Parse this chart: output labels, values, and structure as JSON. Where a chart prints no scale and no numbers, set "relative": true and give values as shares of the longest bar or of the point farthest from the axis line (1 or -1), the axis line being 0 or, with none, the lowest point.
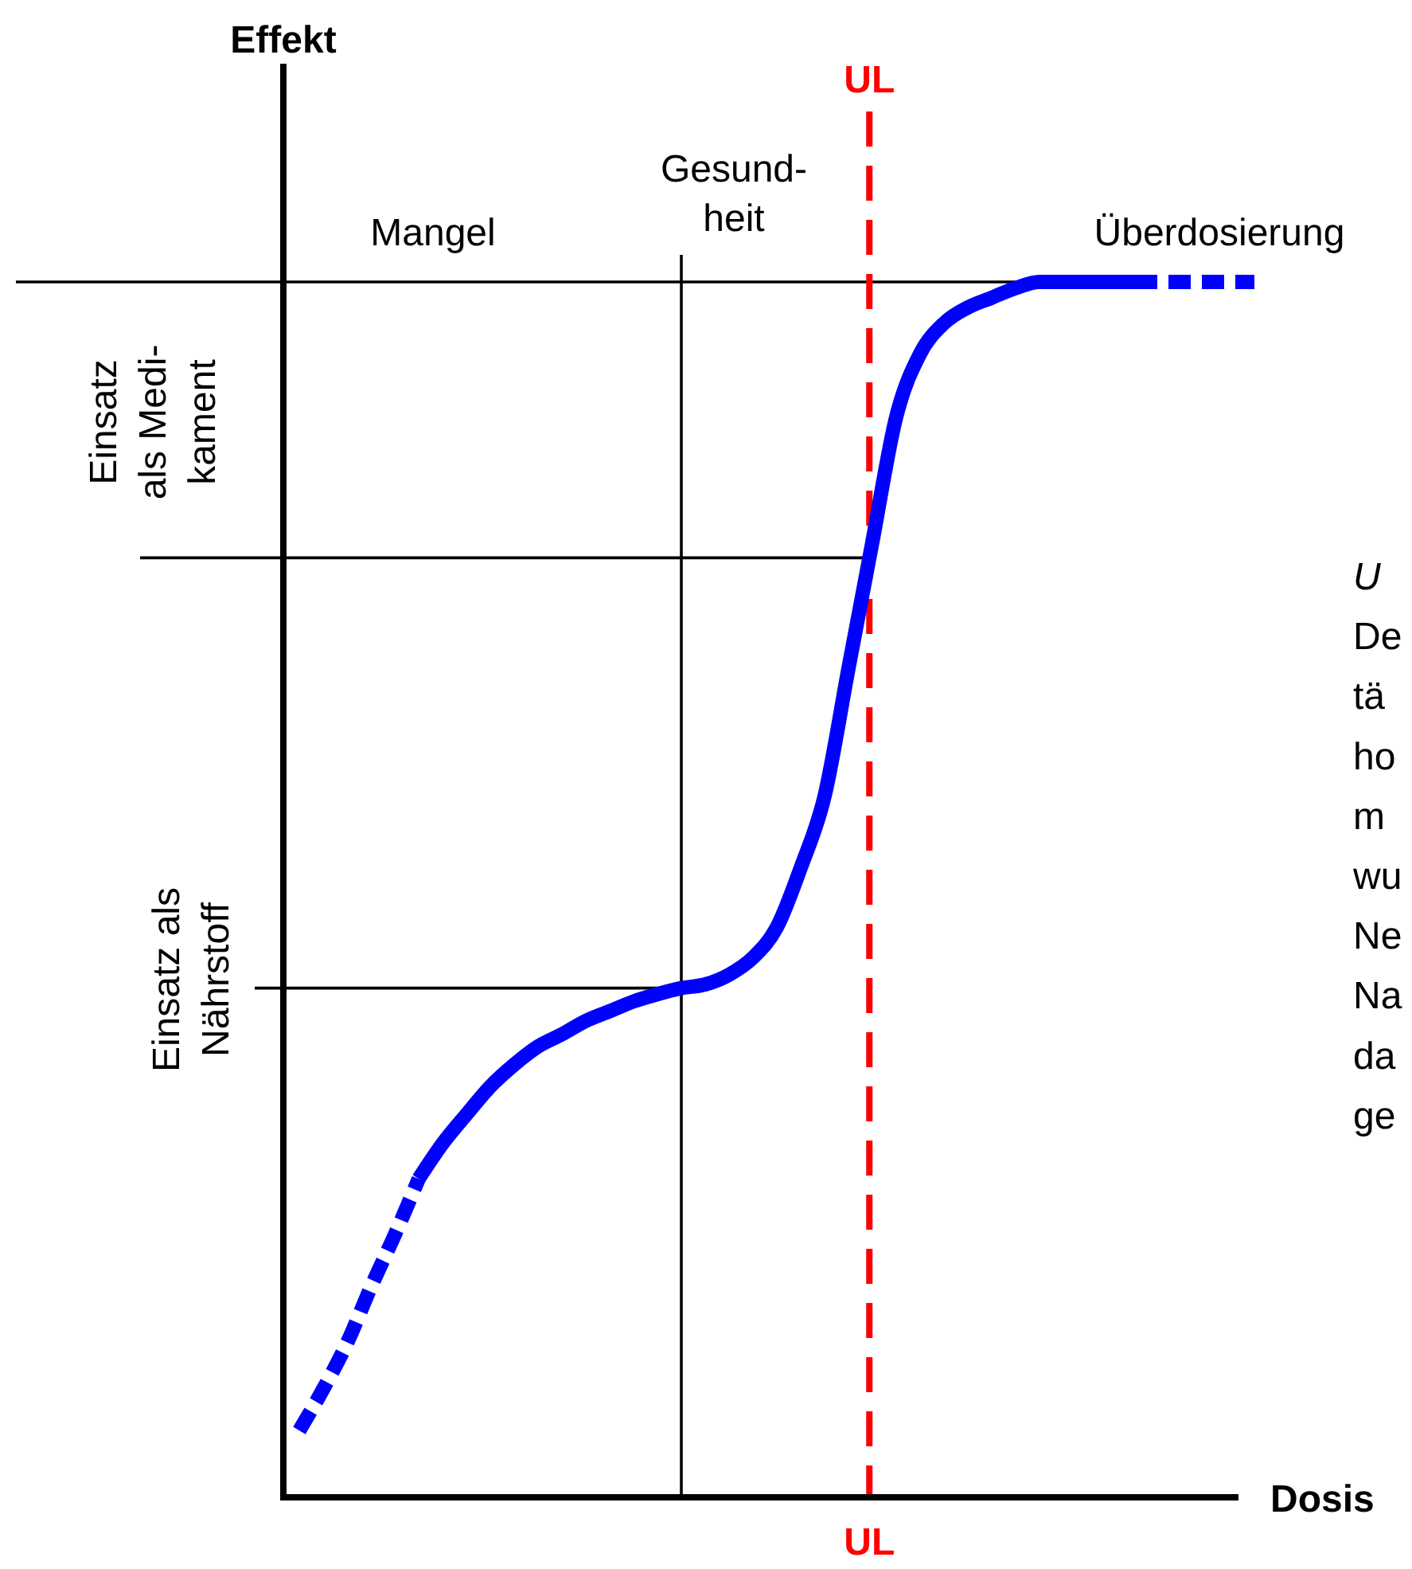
{
  "chart_data": {
    "type": "line",
    "relative": true,
    "xlabel": "Dosis",
    "categories": [
      null,
      null,
      null,
      null,
      null,
      null,
      null,
      null,
      null,
      null,
      null,
      null,
      null,
      null,
      null,
      null,
      null,
      null,
      null,
      null,
      null,
      null,
      null,
      null,
      null,
      null,
      null,
      null,
      null,
      null,
      null,
      null,
      null,
      null,
      null,
      null,
      null,
      null,
      null,
      null,
      null
    ],
    "series": [
      {
        "color": "#0000ff",
        "line_style": "dashed",
        "values": [
          0.055,
          0.089,
          0.127,
          0.173,
          0.216,
          0.262,
          null,
          null,
          null,
          null,
          null,
          null,
          null,
          null,
          null,
          null,
          null,
          null,
          null,
          null,
          null,
          null,
          null,
          null,
          null,
          null,
          null,
          null,
          null,
          null,
          null,
          null,
          null,
          null,
          null,
          null,
          null,
          null,
          null,
          null,
          null
        ]
      },
      {
        "color": "#0000ff",
        "line_style": "solid",
        "values": [
          null,
          null,
          null,
          null,
          null,
          0.262,
          0.291,
          0.315,
          0.338,
          0.356,
          0.371,
          0.381,
          0.392,
          0.4,
          0.408,
          0.414,
          0.419,
          0.422,
          0.43,
          0.444,
          0.469,
          0.518,
          0.577,
          0.682,
          0.786,
          0.889,
          0.941,
          0.966,
          0.979,
          0.987,
          0.995,
          1,
          1,
          1,
          1,
          1,
          null,
          null,
          null,
          null,
          null
        ]
      },
      {
        "color": "#0000ff",
        "line_style": "dashed",
        "values": [
          null,
          null,
          null,
          null,
          null,
          null,
          null,
          null,
          null,
          null,
          null,
          null,
          null,
          null,
          null,
          null,
          null,
          null,
          null,
          null,
          null,
          null,
          null,
          null,
          null,
          null,
          null,
          null,
          null,
          null,
          null,
          null,
          null,
          null,
          null,
          1,
          1,
          1,
          1,
          1,
          1
        ]
      }
    ],
    "ref_lines": [
      {
        "axis": "y",
        "value": 1,
        "color": "#000000",
        "line_style": "solid"
      },
      {
        "axis": "y",
        "value": 0.773,
        "color": "#000000",
        "line_style": "solid"
      },
      {
        "axis": "y",
        "value": 0.419,
        "color": "#000000",
        "line_style": "solid"
      }
    ],
    "annotations": [
      "Mangel",
      "Gesund-\nheit",
      "Überdosierung",
      "Einsatz\nals Medi-\nkament",
      "Einsatz als\nNährstoff",
      "U\nDe\ntä\nho\nm\nwu\nNe\nNa\nda\nge",
      "UL",
      "Effekt"
    ]
  }
}
